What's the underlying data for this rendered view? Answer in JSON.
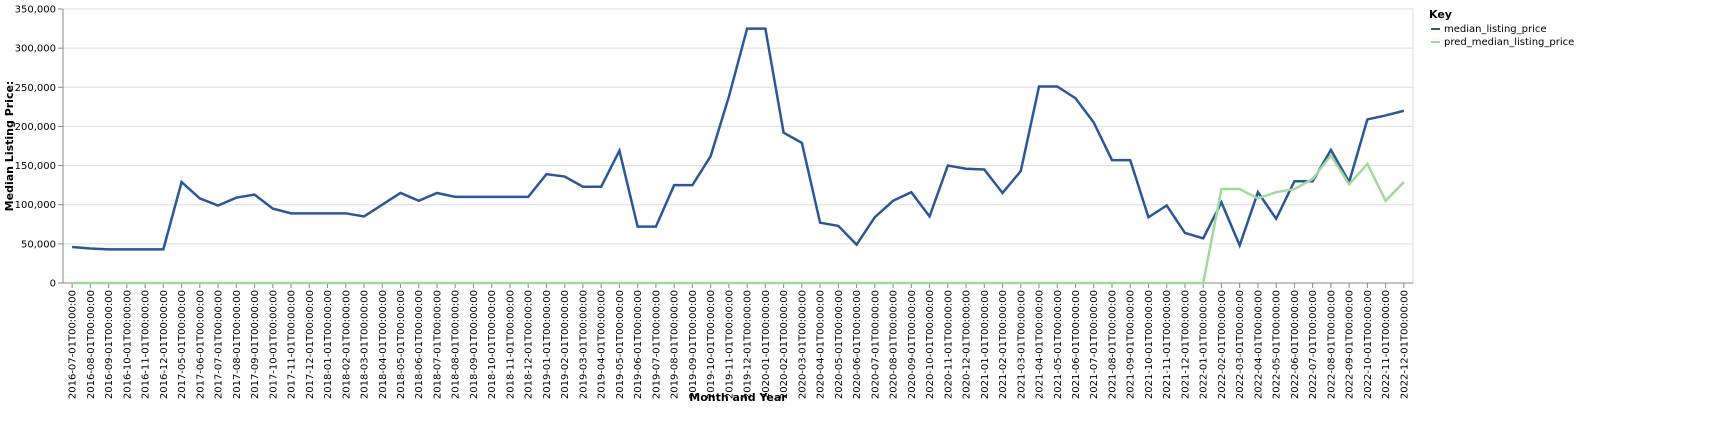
{
  "chart_data": {
    "type": "line",
    "x_label": "Month and Year",
    "y_label": "Median Listing Price:",
    "legend_title": "Key",
    "legend": "top-right",
    "grid": true,
    "categories": [
      "2016-07-01T00:00:00",
      "2016-08-01T00:00:00",
      "2016-09-01T00:00:00",
      "2016-10-01T00:00:00",
      "2016-11-01T00:00:00",
      "2016-12-01T00:00:00",
      "2017-05-01T00:00:00",
      "2017-06-01T00:00:00",
      "2017-07-01T00:00:00",
      "2017-08-01T00:00:00",
      "2017-09-01T00:00:00",
      "2017-10-01T00:00:00",
      "2017-11-01T00:00:00",
      "2017-12-01T00:00:00",
      "2018-01-01T00:00:00",
      "2018-02-01T00:00:00",
      "2018-03-01T00:00:00",
      "2018-04-01T00:00:00",
      "2018-05-01T00:00:00",
      "2018-06-01T00:00:00",
      "2018-07-01T00:00:00",
      "2018-08-01T00:00:00",
      "2018-09-01T00:00:00",
      "2018-10-01T00:00:00",
      "2018-11-01T00:00:00",
      "2018-12-01T00:00:00",
      "2019-01-01T00:00:00",
      "2019-02-01T00:00:00",
      "2019-03-01T00:00:00",
      "2019-04-01T00:00:00",
      "2019-05-01T00:00:00",
      "2019-06-01T00:00:00",
      "2019-07-01T00:00:00",
      "2019-08-01T00:00:00",
      "2019-09-01T00:00:00",
      "2019-10-01T00:00:00",
      "2019-11-01T00:00:00",
      "2019-12-01T00:00:00",
      "2020-01-01T00:00:00",
      "2020-02-01T00:00:00",
      "2020-03-01T00:00:00",
      "2020-04-01T00:00:00",
      "2020-05-01T00:00:00",
      "2020-06-01T00:00:00",
      "2020-07-01T00:00:00",
      "2020-08-01T00:00:00",
      "2020-09-01T00:00:00",
      "2020-10-01T00:00:00",
      "2020-11-01T00:00:00",
      "2020-12-01T00:00:00",
      "2021-01-01T00:00:00",
      "2021-02-01T00:00:00",
      "2021-03-01T00:00:00",
      "2021-04-01T00:00:00",
      "2021-05-01T00:00:00",
      "2021-06-01T00:00:00",
      "2021-07-01T00:00:00",
      "2021-08-01T00:00:00",
      "2021-09-01T00:00:00",
      "2021-10-01T00:00:00",
      "2021-11-01T00:00:00",
      "2021-12-01T00:00:00",
      "2022-01-01T00:00:00",
      "2022-02-01T00:00:00",
      "2022-03-01T00:00:00",
      "2022-04-01T00:00:00",
      "2022-05-01T00:00:00",
      "2022-06-01T00:00:00",
      "2022-07-01T00:00:00",
      "2022-08-01T00:00:00",
      "2022-09-01T00:00:00",
      "2022-10-01T00:00:00",
      "2022-11-01T00:00:00",
      "2022-12-01T00:00:00"
    ],
    "series": [
      {
        "name": "median_listing_price",
        "color": "#2b5797",
        "values": [
          46000,
          44000,
          43000,
          43000,
          43000,
          43000,
          129000,
          108000,
          99000,
          109000,
          113000,
          95000,
          89000,
          89000,
          89000,
          89000,
          85000,
          100000,
          115000,
          105000,
          115000,
          110000,
          110000,
          110000,
          110000,
          110000,
          139000,
          136000,
          123000,
          123000,
          169000,
          72000,
          72000,
          125000,
          125000,
          162000,
          238000,
          325000,
          325000,
          192000,
          179000,
          77000,
          73000,
          49000,
          84000,
          105000,
          116000,
          85000,
          150000,
          146000,
          145000,
          115000,
          143000,
          251000,
          251000,
          236000,
          205000,
          157000,
          157000,
          84000,
          99000,
          64000,
          57000,
          103000,
          48000,
          116000,
          82000,
          130000,
          130000,
          170000,
          129000,
          209000,
          214000,
          220000
        ]
      },
      {
        "name": "pred_median_listing_price",
        "color": "#a3d99a",
        "values": [
          0,
          0,
          0,
          0,
          0,
          0,
          0,
          0,
          0,
          0,
          0,
          0,
          0,
          0,
          0,
          0,
          0,
          0,
          0,
          0,
          0,
          0,
          0,
          0,
          0,
          0,
          0,
          0,
          0,
          0,
          0,
          0,
          0,
          0,
          0,
          0,
          0,
          0,
          0,
          0,
          0,
          0,
          0,
          0,
          0,
          0,
          0,
          0,
          0,
          0,
          0,
          0,
          0,
          0,
          0,
          0,
          0,
          0,
          0,
          0,
          0,
          0,
          0,
          120000,
          120000,
          108000,
          116000,
          120000,
          133000,
          163000,
          126000,
          152000,
          105000,
          129000
        ]
      }
    ],
    "ylim": [
      0,
      350000
    ],
    "yticks": [
      0,
      {
        "value": 50000,
        "label": "50,000"
      },
      {
        "value": 100000,
        "label": "100,000"
      },
      {
        "value": 150000,
        "label": "150,000"
      },
      {
        "value": 200000,
        "label": "200,000"
      },
      {
        "value": 250000,
        "label": "250,000"
      },
      {
        "value": 300000,
        "label": "300,000"
      },
      {
        "value": 350000,
        "label": "350,000"
      }
    ]
  }
}
